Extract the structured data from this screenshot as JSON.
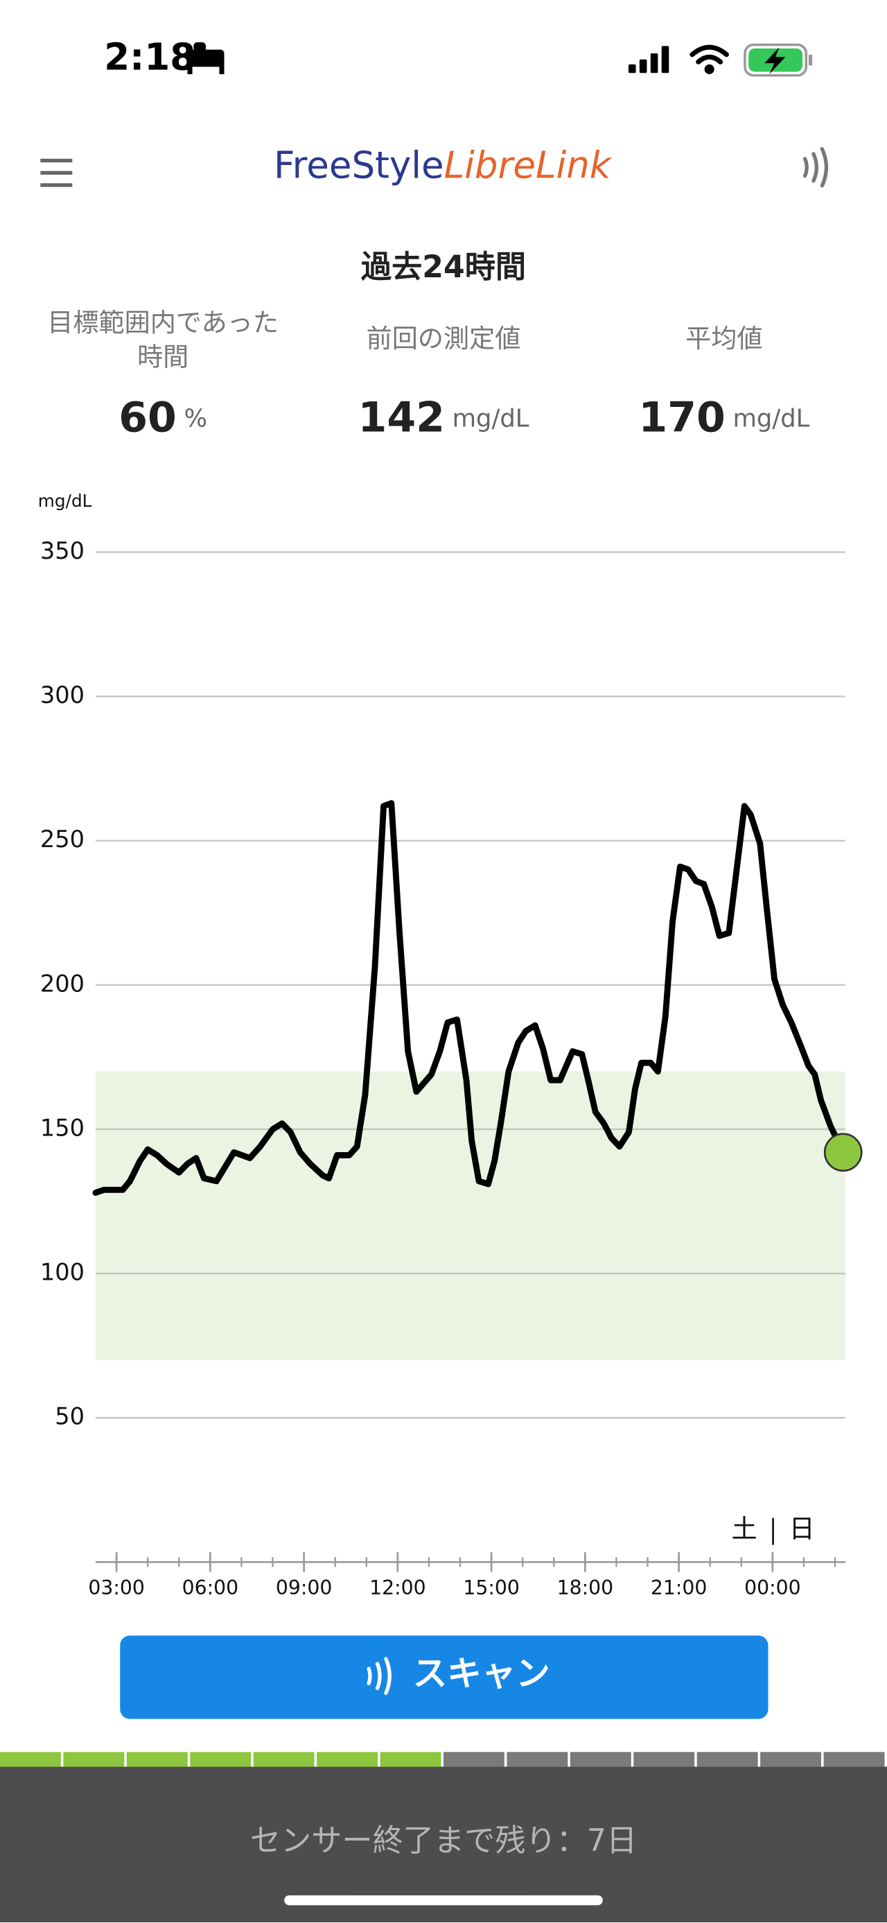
{
  "status_bar": {
    "time": "2:18"
  },
  "header": {
    "logo_part1": "FreeStyle",
    "logo_part2": "LibreLink"
  },
  "summary": {
    "title": "過去24時間",
    "stats": [
      {
        "label_lines": [
          "目標範囲内であった",
          "時間"
        ],
        "value": "60",
        "unit": "%"
      },
      {
        "label_lines": [
          "前回の測定値"
        ],
        "value": "142",
        "unit": "mg/dL"
      },
      {
        "label_lines": [
          "平均値"
        ],
        "value": "170",
        "unit": "mg/dL"
      }
    ]
  },
  "chart_data": {
    "type": "line",
    "y_label": "mg/dL",
    "color": "#000000",
    "marker_color": "#8dc63f",
    "target_range": [
      70,
      170
    ],
    "target_color": "#ebf4e2",
    "grid": true,
    "ylim": [
      0,
      350
    ],
    "yticks": [
      50,
      100,
      150,
      200,
      250,
      300,
      350
    ],
    "xlim": [
      2.33,
      26.33
    ],
    "xticks": [
      {
        "value": 3,
        "label": "03:00"
      },
      {
        "value": 6,
        "label": "06:00"
      },
      {
        "value": 9,
        "label": "09:00"
      },
      {
        "value": 12,
        "label": "12:00"
      },
      {
        "value": 15,
        "label": "15:00"
      },
      {
        "value": 18,
        "label": "18:00"
      },
      {
        "value": 21,
        "label": "21:00"
      },
      {
        "value": 24,
        "label": "00:00"
      }
    ],
    "xminorticks": [
      3,
      4,
      5,
      6,
      7,
      8,
      9,
      10,
      11,
      12,
      13,
      14,
      15,
      16,
      17,
      18,
      19,
      20,
      21,
      22,
      23,
      24,
      25,
      26
    ],
    "day_labels": [
      "土",
      "日"
    ],
    "x": [
      2.33,
      2.6,
      3.2,
      3.43,
      3.75,
      4.0,
      4.3,
      4.6,
      5.0,
      5.27,
      5.55,
      5.8,
      6.2,
      6.76,
      7.27,
      7.6,
      8.0,
      8.3,
      8.57,
      8.88,
      9.2,
      9.6,
      9.8,
      10.06,
      10.45,
      10.7,
      10.96,
      11.27,
      11.55,
      11.8,
      12.06,
      12.33,
      12.6,
      13.08,
      13.35,
      13.6,
      13.9,
      14.2,
      14.37,
      14.6,
      14.9,
      15.1,
      15.3,
      15.55,
      15.86,
      16.1,
      16.4,
      16.65,
      16.9,
      17.2,
      17.4,
      17.6,
      17.9,
      18.1,
      18.33,
      18.6,
      18.84,
      19.1,
      19.4,
      19.6,
      19.8,
      20.1,
      20.33,
      20.57,
      20.8,
      21.04,
      21.3,
      21.55,
      21.8,
      22.06,
      22.3,
      22.6,
      22.84,
      23.1,
      23.3,
      23.6,
      23.82,
      24.06,
      24.33,
      24.6,
      24.9,
      25.15,
      25.35,
      25.55,
      25.86,
      26.26
    ],
    "values": [
      128,
      129,
      129,
      132,
      139,
      143,
      141,
      138,
      135,
      138,
      140,
      133,
      132,
      142,
      140,
      144,
      150,
      152,
      149,
      142,
      138,
      134,
      133,
      141,
      141,
      144,
      162,
      206,
      262,
      263,
      218,
      177,
      163,
      169,
      177,
      187,
      188,
      167,
      146,
      132,
      131,
      139,
      152,
      170,
      180,
      184,
      186,
      178,
      167,
      167,
      172,
      177,
      176,
      167,
      156,
      152,
      147,
      144,
      149,
      164,
      173,
      173,
      170,
      189,
      222,
      241,
      240,
      236,
      235,
      227,
      217,
      218,
      239,
      262,
      259,
      249,
      226,
      202,
      193,
      187,
      179,
      172,
      169,
      160,
      151,
      142
    ]
  },
  "scan_button": {
    "label": "スキャン"
  },
  "sensor": {
    "segments_total": 14,
    "segments_filled": 7,
    "remaining_text": "センサー終了まで残り：7日"
  }
}
